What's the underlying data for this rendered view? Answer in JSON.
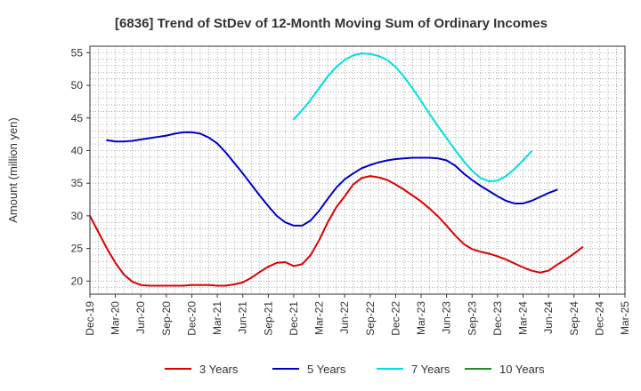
{
  "chart_data": {
    "type": "line",
    "title": "[6836]  Trend of StDev of 12-Month Moving Sum of Ordinary Incomes",
    "ylabel": "Amount (million yen)",
    "xlabel": "",
    "ylim": [
      18,
      56
    ],
    "yticks": [
      20,
      25,
      30,
      35,
      40,
      45,
      50,
      55
    ],
    "xtick_labels": [
      "Dec-19",
      "Mar-20",
      "Jun-20",
      "Sep-20",
      "Dec-20",
      "Mar-21",
      "Jun-21",
      "Sep-21",
      "Dec-21",
      "Mar-22",
      "Jun-22",
      "Sep-22",
      "Dec-22",
      "Mar-23",
      "Jun-23",
      "Sep-23",
      "Dec-23",
      "Mar-24",
      "Jun-24",
      "Sep-24",
      "Dec-24",
      "Mar-25"
    ],
    "grid": true,
    "legend_position": "bottom",
    "series": [
      {
        "name": "3 Years",
        "color": "#dd0000",
        "points": [
          [
            0,
            30.0
          ],
          [
            1,
            27.5
          ],
          [
            2,
            25.0
          ],
          [
            3,
            22.8
          ],
          [
            4,
            21.0
          ],
          [
            5,
            19.9
          ],
          [
            6,
            19.4
          ],
          [
            7,
            19.3
          ],
          [
            8,
            19.3
          ],
          [
            9,
            19.3
          ],
          [
            10,
            19.3
          ],
          [
            11,
            19.3
          ],
          [
            12,
            19.4
          ],
          [
            13,
            19.4
          ],
          [
            14,
            19.4
          ],
          [
            15,
            19.3
          ],
          [
            16,
            19.3
          ],
          [
            17,
            19.5
          ],
          [
            18,
            19.8
          ],
          [
            19,
            20.5
          ],
          [
            20,
            21.4
          ],
          [
            21,
            22.2
          ],
          [
            22,
            22.8
          ],
          [
            23,
            22.9
          ],
          [
            24,
            22.3
          ],
          [
            25,
            22.6
          ],
          [
            26,
            24.0
          ],
          [
            27,
            26.3
          ],
          [
            28,
            29.0
          ],
          [
            29,
            31.3
          ],
          [
            30,
            33.0
          ],
          [
            31,
            34.8
          ],
          [
            32,
            35.8
          ],
          [
            33,
            36.1
          ],
          [
            34,
            35.9
          ],
          [
            35,
            35.5
          ],
          [
            36,
            34.8
          ],
          [
            37,
            34.0
          ],
          [
            38,
            33.1
          ],
          [
            39,
            32.2
          ],
          [
            40,
            31.1
          ],
          [
            41,
            29.9
          ],
          [
            42,
            28.5
          ],
          [
            43,
            27.0
          ],
          [
            44,
            25.7
          ],
          [
            45,
            24.9
          ],
          [
            46,
            24.5
          ],
          [
            47,
            24.2
          ],
          [
            48,
            23.8
          ],
          [
            49,
            23.3
          ],
          [
            50,
            22.7
          ],
          [
            51,
            22.1
          ],
          [
            52,
            21.6
          ],
          [
            53,
            21.3
          ],
          [
            54,
            21.6
          ],
          [
            55,
            22.5
          ],
          [
            56,
            23.3
          ],
          [
            57,
            24.2
          ],
          [
            58,
            25.2
          ]
        ]
      },
      {
        "name": "5 Years",
        "color": "#0000cc",
        "points": [
          [
            2,
            41.6
          ],
          [
            3,
            41.4
          ],
          [
            4,
            41.4
          ],
          [
            5,
            41.5
          ],
          [
            6,
            41.7
          ],
          [
            7,
            41.9
          ],
          [
            8,
            42.1
          ],
          [
            9,
            42.3
          ],
          [
            10,
            42.6
          ],
          [
            11,
            42.8
          ],
          [
            12,
            42.8
          ],
          [
            13,
            42.6
          ],
          [
            14,
            42.0
          ],
          [
            15,
            41.1
          ],
          [
            16,
            39.7
          ],
          [
            17,
            38.1
          ],
          [
            18,
            36.5
          ],
          [
            19,
            34.8
          ],
          [
            20,
            33.1
          ],
          [
            21,
            31.5
          ],
          [
            22,
            30.0
          ],
          [
            23,
            29.0
          ],
          [
            24,
            28.5
          ],
          [
            25,
            28.5
          ],
          [
            26,
            29.3
          ],
          [
            27,
            30.8
          ],
          [
            28,
            32.6
          ],
          [
            29,
            34.3
          ],
          [
            30,
            35.6
          ],
          [
            31,
            36.5
          ],
          [
            32,
            37.3
          ],
          [
            33,
            37.8
          ],
          [
            34,
            38.2
          ],
          [
            35,
            38.5
          ],
          [
            36,
            38.7
          ],
          [
            37,
            38.8
          ],
          [
            38,
            38.9
          ],
          [
            39,
            38.9
          ],
          [
            40,
            38.9
          ],
          [
            41,
            38.8
          ],
          [
            42,
            38.5
          ],
          [
            43,
            37.7
          ],
          [
            44,
            36.5
          ],
          [
            45,
            35.5
          ],
          [
            46,
            34.6
          ],
          [
            47,
            33.8
          ],
          [
            48,
            33.0
          ],
          [
            49,
            32.3
          ],
          [
            50,
            31.9
          ],
          [
            51,
            31.9
          ],
          [
            52,
            32.3
          ],
          [
            53,
            32.9
          ],
          [
            54,
            33.5
          ],
          [
            55,
            34.0
          ]
        ]
      },
      {
        "name": "7 Years",
        "color": "#00e0e0",
        "points": [
          [
            24,
            44.8
          ],
          [
            25,
            46.2
          ],
          [
            26,
            47.8
          ],
          [
            27,
            49.6
          ],
          [
            28,
            51.4
          ],
          [
            29,
            52.8
          ],
          [
            30,
            53.9
          ],
          [
            31,
            54.6
          ],
          [
            32,
            54.9
          ],
          [
            33,
            54.8
          ],
          [
            34,
            54.5
          ],
          [
            35,
            53.9
          ],
          [
            36,
            52.8
          ],
          [
            37,
            51.3
          ],
          [
            38,
            49.5
          ],
          [
            39,
            47.6
          ],
          [
            40,
            45.6
          ],
          [
            41,
            43.7
          ],
          [
            42,
            41.9
          ],
          [
            43,
            40.1
          ],
          [
            44,
            38.4
          ],
          [
            45,
            36.9
          ],
          [
            46,
            35.8
          ],
          [
            47,
            35.3
          ],
          [
            48,
            35.4
          ],
          [
            49,
            36.1
          ],
          [
            50,
            37.2
          ],
          [
            51,
            38.5
          ],
          [
            52,
            39.9
          ]
        ]
      },
      {
        "name": "10 Years",
        "color": "#228b22",
        "points": []
      }
    ]
  }
}
